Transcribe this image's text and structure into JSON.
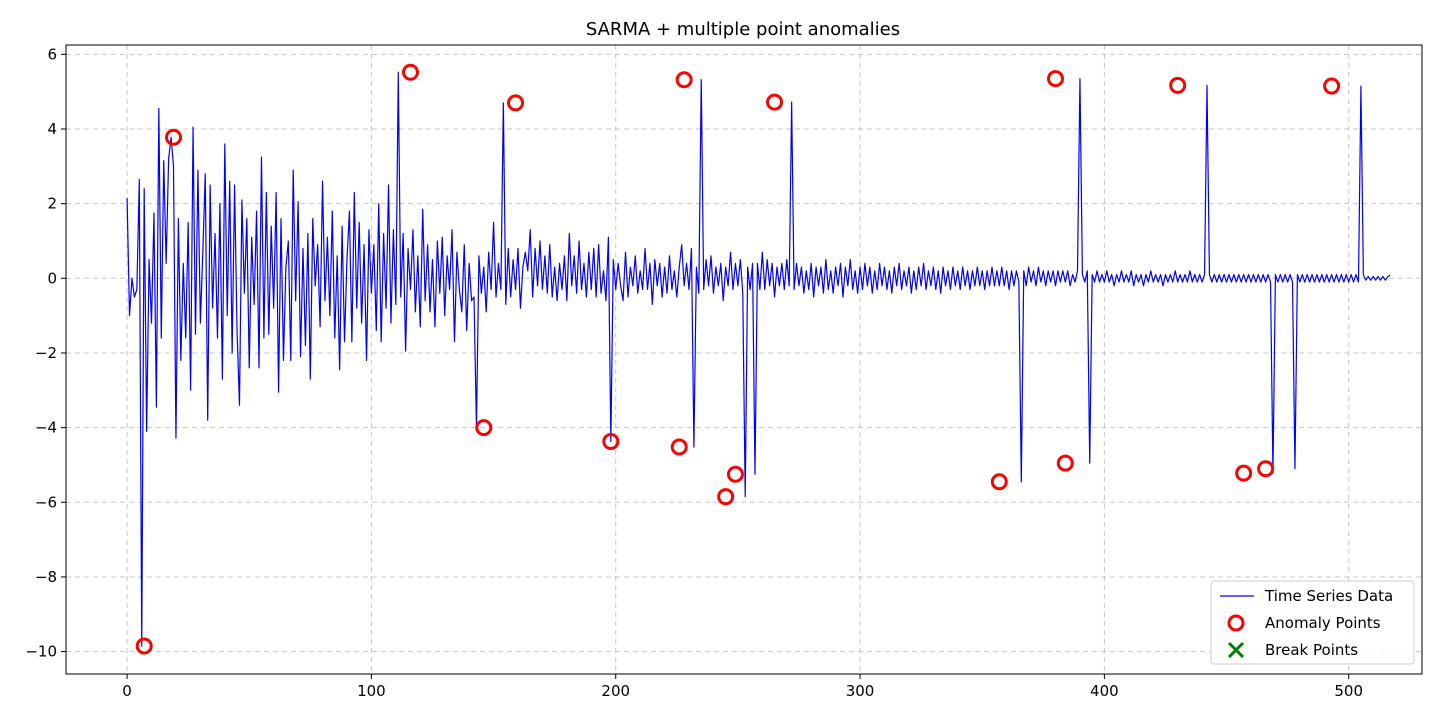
{
  "chart_data": {
    "type": "line",
    "title": "SARMA + multiple point anomalies",
    "xlabel": "",
    "ylabel": "",
    "xlim": [
      -25,
      530
    ],
    "ylim": [
      -10.6,
      6.25
    ],
    "x_ticks": [
      0,
      100,
      200,
      300,
      400,
      500
    ],
    "y_ticks": [
      6,
      4,
      2,
      0,
      -2,
      -4,
      -6,
      -8,
      -10
    ],
    "y_tick_labels": [
      "6",
      "4",
      "2",
      "0",
      "−2",
      "−4",
      "−6",
      "−8",
      "−10"
    ],
    "grid": true,
    "legend_position": "lower-right",
    "series": [
      {
        "name": "Time Series Data",
        "kind": "line",
        "color": "#0000ff",
        "x_start": 0,
        "values": [
          2.15,
          -1.0,
          0.0,
          -0.5,
          -0.3,
          2.65,
          -9.85,
          2.4,
          -4.1,
          0.5,
          -1.2,
          1.75,
          -3.45,
          4.55,
          -1.6,
          3.15,
          0.4,
          3.2,
          3.78,
          3.0,
          -4.28,
          1.6,
          -2.2,
          0.4,
          -1.6,
          1.5,
          -3.0,
          4.05,
          -1.5,
          2.9,
          -1.2,
          0.7,
          2.8,
          -3.8,
          2.5,
          -0.8,
          1.2,
          -1.6,
          2.0,
          -2.7,
          3.6,
          -1.0,
          2.6,
          -2.0,
          2.5,
          -1.4,
          -3.4,
          2.1,
          -0.4,
          1.6,
          -2.4,
          1.1,
          -0.7,
          1.8,
          -2.4,
          3.25,
          -1.6,
          2.3,
          -1.5,
          1.4,
          -0.8,
          2.3,
          -3.05,
          1.6,
          -2.2,
          0.3,
          1.0,
          -2.2,
          2.9,
          -0.6,
          2.05,
          -2.1,
          0.8,
          -1.8,
          1.2,
          -2.7,
          1.6,
          -0.2,
          0.9,
          -1.3,
          2.6,
          -0.6,
          1.1,
          -1.0,
          1.8,
          -1.6,
          0.6,
          -2.45,
          1.4,
          -1.7,
          0.5,
          1.8,
          -1.7,
          2.3,
          -0.8,
          1.5,
          -1.2,
          0.9,
          -2.2,
          1.3,
          -0.4,
          0.9,
          -1.4,
          2.0,
          -1.7,
          1.2,
          -0.8,
          2.5,
          -1.2,
          1.3,
          -0.7,
          5.52,
          -0.5,
          1.2,
          -1.95,
          0.8,
          -0.3,
          1.3,
          -0.9,
          0.6,
          -1.3,
          1.85,
          -0.6,
          0.9,
          -0.9,
          0.5,
          -1.3,
          1.0,
          -0.4,
          1.1,
          -1.0,
          0.6,
          -0.3,
          1.3,
          -1.7,
          0.7,
          -0.3,
          -0.9,
          0.9,
          -1.4,
          0.4,
          -0.6,
          -0.5,
          -4.0,
          0.6,
          -0.4,
          0.3,
          -0.9,
          0.7,
          -0.3,
          1.5,
          -0.5,
          0.4,
          -0.3,
          4.7,
          -0.7,
          0.8,
          -0.5,
          0.5,
          -0.3,
          0.8,
          -0.8,
          0.3,
          0.7,
          0.2,
          1.3,
          -0.5,
          0.8,
          -0.2,
          1.0,
          -0.3,
          0.6,
          -0.4,
          0.9,
          -0.5,
          0.3,
          -0.6,
          0.4,
          -0.3,
          0.6,
          -0.6,
          1.2,
          -0.2,
          0.6,
          -0.4,
          1.0,
          -0.3,
          0.4,
          -0.5,
          0.7,
          -0.3,
          0.8,
          -0.5,
          0.9,
          -0.4,
          0.2,
          -0.6,
          1.1,
          -4.37,
          0.5,
          -0.3,
          0.4,
          -0.2,
          -0.6,
          0.7,
          -0.5,
          0.3,
          -0.2,
          0.6,
          -0.4,
          0.2,
          -0.3,
          0.8,
          -0.3,
          0.4,
          -0.7,
          0.5,
          -0.2,
          0.4,
          -0.5,
          0.3,
          -0.4,
          0.6,
          -0.3,
          0.2,
          -0.5,
          0.3,
          0.9,
          -0.2,
          0.4,
          -0.3,
          0.8,
          -4.52,
          0.3,
          -0.4,
          5.32,
          -0.3,
          0.5,
          -0.2,
          0.6,
          -0.4,
          0.3,
          -0.2,
          0.4,
          -0.6,
          0.3,
          -0.2,
          0.7,
          -0.3,
          0.4,
          -0.2,
          0.5,
          -0.4,
          -5.85,
          0.3,
          -0.3,
          0.4,
          -5.25,
          0.4,
          -0.3,
          0.7,
          -0.3,
          0.5,
          -0.2,
          0.4,
          -0.5,
          0.3,
          -0.2,
          0.4,
          -0.3,
          0.5,
          -0.2,
          4.72,
          -0.3,
          0.4,
          -0.2,
          0.3,
          -0.4,
          0.2,
          -0.3,
          0.4,
          -0.5,
          0.3,
          -0.2,
          0.3,
          -0.4,
          0.5,
          -0.3,
          0.2,
          -0.4,
          0.3,
          -0.2,
          0.4,
          -0.5,
          0.3,
          -0.2,
          0.5,
          -0.3,
          0.2,
          -0.4,
          0.3,
          -0.3,
          0.4,
          -0.2,
          0.3,
          -0.4,
          0.2,
          -0.3,
          0.4,
          -0.2,
          0.3,
          -0.3,
          0.2,
          -0.4,
          0.3,
          -0.2,
          0.4,
          -0.3,
          0.2,
          -0.2,
          0.3,
          -0.4,
          0.2,
          -0.3,
          0.3,
          -0.2,
          0.4,
          -0.3,
          0.2,
          -0.2,
          0.3,
          -0.3,
          0.2,
          -0.4,
          0.3,
          -0.2,
          0.2,
          -0.3,
          0.3,
          -0.2,
          0.2,
          -0.3,
          0.3,
          -0.2,
          0.2,
          -0.3,
          0.2,
          -0.2,
          0.3,
          -0.2,
          0.2,
          -0.3,
          0.2,
          -0.2,
          0.3,
          -0.2,
          0.2,
          -0.2,
          0.3,
          -0.2,
          0.2,
          -0.3,
          0.2,
          -0.2,
          0.2,
          -0.1,
          -5.45,
          0.2,
          -0.2,
          0.3,
          -0.1,
          0.2,
          -0.2,
          0.3,
          -0.1,
          0.2,
          -0.2,
          0.2,
          -0.1,
          0.2,
          -0.2,
          0.2,
          -0.1,
          0.2,
          -0.1,
          0.2,
          -0.2,
          0.1,
          -0.1,
          0.2,
          5.35,
          0.1,
          -0.1,
          0.2,
          -4.95,
          0.1,
          -0.1,
          0.2,
          -0.1,
          0.1,
          -0.1,
          0.2,
          -0.1,
          0.1,
          -0.2,
          0.1,
          -0.1,
          0.2,
          -0.1,
          0.1,
          -0.1,
          0.2,
          -0.2,
          0.1,
          -0.1,
          0.1,
          -0.2,
          0.1,
          -0.1,
          0.2,
          -0.1,
          0.1,
          -0.1,
          0.1,
          -0.2,
          0.1,
          -0.1,
          0.1,
          -0.1,
          0.2,
          -0.1,
          0.1,
          -0.1,
          0.1,
          -0.1,
          0.2,
          -0.1,
          0.1,
          -0.1,
          0.1,
          -0.1,
          0.1,
          5.17,
          0.1,
          -0.1,
          0.1,
          -0.1,
          0.1,
          -0.1,
          0.1,
          -0.1,
          0.1,
          -0.1,
          0.1,
          -0.1,
          0.1,
          -0.1,
          0.1,
          -0.1,
          0.1,
          -0.1,
          0.1,
          -0.1,
          0.1,
          -0.1,
          0.1,
          -0.1,
          0.1,
          -0.1,
          -5.22,
          0.1,
          -0.1,
          0.1,
          -0.1,
          0.1,
          -0.1,
          0.1,
          -0.1,
          -5.1,
          0.1,
          -0.1,
          0.1,
          -0.1,
          0.1,
          -0.1,
          0.1,
          -0.1,
          0.1,
          -0.1,
          0.1,
          -0.1,
          0.1,
          -0.1,
          0.1,
          -0.1,
          0.1,
          -0.1,
          0.1,
          -0.1,
          0.1,
          -0.1,
          0.1,
          -0.1,
          0.1,
          -0.1,
          5.15,
          0.1,
          -0.05,
          0.05,
          -0.05,
          0.05,
          -0.05,
          0.05,
          -0.05,
          0.05,
          -0.05,
          0.05,
          0.08
        ]
      },
      {
        "name": "Anomaly Points",
        "kind": "scatter",
        "marker": "open-circle",
        "color": "#ff0000",
        "points": [
          [
            7,
            -9.85
          ],
          [
            19,
            3.78
          ],
          [
            116,
            5.52
          ],
          [
            146,
            -4.0
          ],
          [
            159,
            4.7
          ],
          [
            198,
            -4.37
          ],
          [
            226,
            -4.52
          ],
          [
            228,
            5.32
          ],
          [
            245,
            -5.85
          ],
          [
            249,
            -5.25
          ],
          [
            265,
            4.72
          ],
          [
            357,
            -5.45
          ],
          [
            380,
            5.35
          ],
          [
            384,
            -4.95
          ],
          [
            430,
            5.17
          ],
          [
            457,
            -5.22
          ],
          [
            466,
            -5.1
          ],
          [
            493,
            5.15
          ]
        ]
      },
      {
        "name": "Break Points",
        "kind": "scatter",
        "marker": "x",
        "color": "#008000",
        "points": []
      }
    ]
  }
}
